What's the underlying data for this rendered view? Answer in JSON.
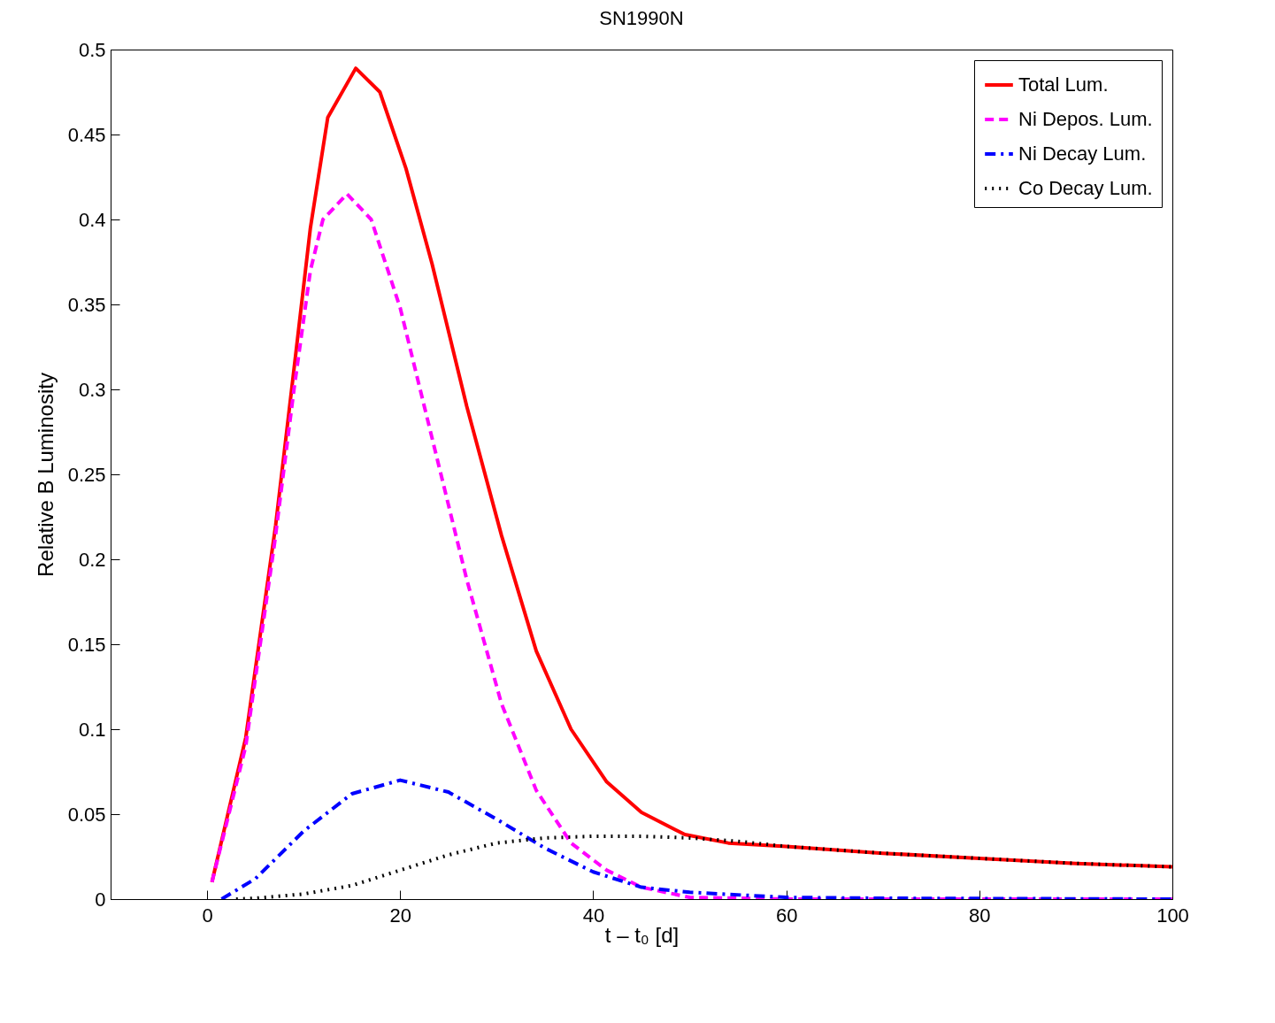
{
  "chart_data": {
    "type": "line",
    "title": "SN1990N",
    "xlabel": "t – t₀  [d]",
    "ylabel": "Relative B Luminosity",
    "xlim": [
      -10,
      100
    ],
    "ylim": [
      0,
      0.5
    ],
    "xticks": [
      0,
      20,
      40,
      60,
      80,
      100
    ],
    "yticks": [
      0,
      0.05,
      0.1,
      0.15,
      0.2,
      0.25,
      0.3,
      0.35,
      0.4,
      0.45,
      0.5
    ],
    "grid": false,
    "legend": "top right",
    "marker": "none",
    "series": [
      {
        "name": "Total Lum.",
        "color": "#ff0000",
        "line_style": "solid",
        "x": [
          0.5,
          4,
          7.1,
          8.9,
          10.7,
          12.5,
          15.4,
          17.9,
          20.6,
          23.3,
          26.9,
          30.5,
          34.1,
          37.7,
          41.4,
          45,
          49.5,
          54,
          60,
          70,
          80,
          90,
          100
        ],
        "values": [
          0.01,
          0.095,
          0.22,
          0.307,
          0.395,
          0.46,
          0.489,
          0.475,
          0.43,
          0.374,
          0.29,
          0.214,
          0.146,
          0.1,
          0.069,
          0.051,
          0.038,
          0.033,
          0.031,
          0.027,
          0.024,
          0.021,
          0.019
        ]
      },
      {
        "name": "Ni Depos. Lum.",
        "color": "#ff00ff",
        "line_style": "dashed",
        "x": [
          0.5,
          4,
          7,
          9,
          10.7,
          12,
          14.5,
          17,
          20,
          22.5,
          26.9,
          30.5,
          34.1,
          37.7,
          41.4,
          45,
          50,
          60,
          100
        ],
        "values": [
          0.01,
          0.09,
          0.21,
          0.3,
          0.37,
          0.4,
          0.415,
          0.4,
          0.348,
          0.29,
          0.188,
          0.115,
          0.064,
          0.033,
          0.017,
          0.007,
          0.001,
          0,
          0
        ]
      },
      {
        "name": "Ni Decay Lum.",
        "color": "#0000ff",
        "line_style": "dashdot",
        "x": [
          1.5,
          5,
          10,
          15,
          20,
          25,
          30,
          35,
          40,
          45,
          50,
          60,
          70,
          100
        ],
        "values": [
          0,
          0.012,
          0.04,
          0.062,
          0.07,
          0.063,
          0.047,
          0.03,
          0.016,
          0.007,
          0.004,
          0.001,
          0.0005,
          0
        ]
      },
      {
        "name": "Co Decay Lum.",
        "color": "#000000",
        "line_style": "dotted",
        "x": [
          3,
          5,
          10,
          15,
          20,
          25,
          30,
          35,
          40,
          45,
          50,
          55,
          60,
          70,
          80,
          90,
          100
        ],
        "values": [
          0,
          0.0005,
          0.003,
          0.008,
          0.017,
          0.026,
          0.033,
          0.036,
          0.037,
          0.037,
          0.036,
          0.034,
          0.031,
          0.027,
          0.024,
          0.021,
          0.019
        ]
      }
    ]
  }
}
